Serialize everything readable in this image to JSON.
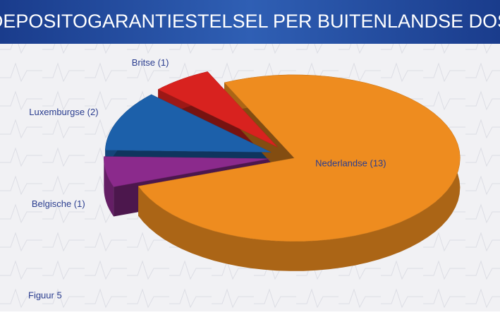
{
  "chart_data": {
    "type": "pie",
    "title": "DEPOSITOGARANTIESTELSEL PER BUITENLANDSE DOS",
    "values": [
      13,
      1,
      2,
      1
    ],
    "value_labels": [
      "Nederlandse (13)",
      "Belgische (1)",
      "Luxemburgse (2)",
      "Britse (1)"
    ],
    "colors": [
      "#ee8c1f",
      "#8b2a8c",
      "#1c60aa",
      "#d8221f"
    ],
    "footnote": "Figuur 5"
  }
}
